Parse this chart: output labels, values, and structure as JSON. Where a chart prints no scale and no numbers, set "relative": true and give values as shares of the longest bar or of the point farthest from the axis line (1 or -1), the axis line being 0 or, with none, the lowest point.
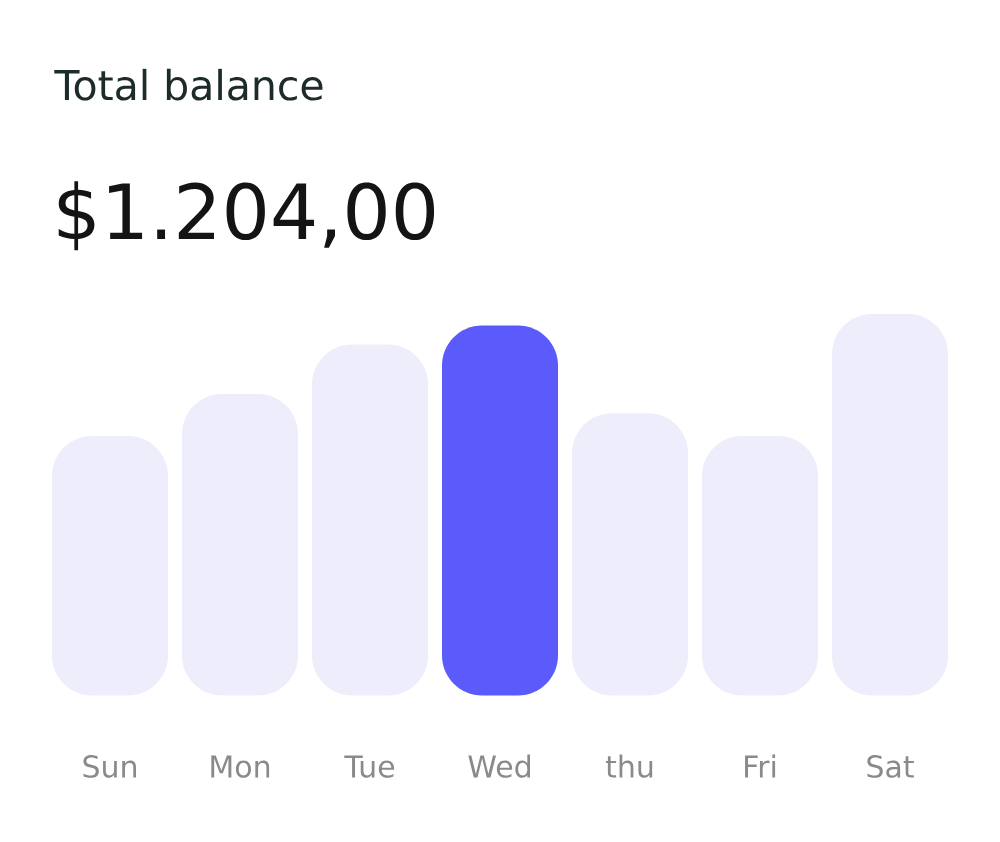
{
  "chart_data": {
    "type": "bar",
    "title": "Total balance",
    "subtitle": "$1.204,00",
    "categories": [
      "Sun",
      "Mon",
      "Tue",
      "Wed",
      "thu",
      "Fri",
      "Sat"
    ],
    "values": [
      0.68,
      0.79,
      0.92,
      0.97,
      0.74,
      0.68,
      1
    ],
    "colors": [
      "#eeedfc",
      "#eeedfc",
      "#eeedfc",
      "#5b5bfb",
      "#eeedfc",
      "#eeedfc",
      "#eeedfc"
    ],
    "relative": true
  }
}
